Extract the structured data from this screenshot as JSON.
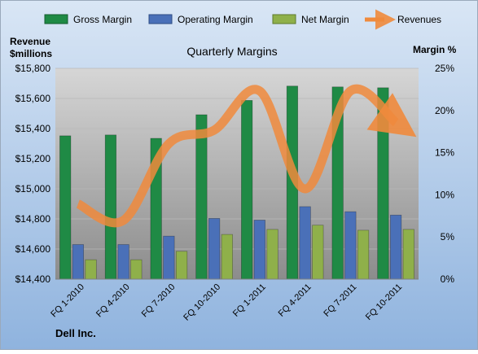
{
  "chart_data": {
    "type": "bar",
    "title": "Quarterly Margins",
    "source": "Dell Inc.",
    "left_axis_label_line1": "Revenue",
    "left_axis_label_line2": "$millions",
    "right_axis_label": "Margin %",
    "categories": [
      "FQ 1-2010",
      "FQ 4-2010",
      "FQ 7-2010",
      "FQ 10-2010",
      "FQ 1-2011",
      "FQ 4-2011",
      "FQ 7-2011",
      "FQ 10-2011"
    ],
    "left_ticks": [
      "$14,400",
      "$14,600",
      "$14,800",
      "$15,000",
      "$15,200",
      "$15,400",
      "$15,600",
      "$15,800"
    ],
    "right_ticks": [
      "0%",
      "5%",
      "10%",
      "15%",
      "20%",
      "25%"
    ],
    "ylim_left": [
      14400,
      15800
    ],
    "ylim_right": [
      0,
      25
    ],
    "legend_position": "top",
    "grid": true,
    "series": [
      {
        "name": "Gross Margin",
        "axis": "right",
        "color": "#1f8a45",
        "values": [
          17.0,
          17.1,
          16.7,
          19.5,
          21.2,
          22.9,
          22.8,
          22.7
        ]
      },
      {
        "name": "Operating Margin",
        "axis": "right",
        "color": "#4a70b8",
        "values": [
          4.1,
          4.1,
          5.1,
          7.2,
          7.0,
          8.6,
          8.0,
          7.6
        ]
      },
      {
        "name": "Net Margin",
        "axis": "right",
        "color": "#8fb04a",
        "values": [
          2.3,
          2.3,
          3.3,
          5.3,
          5.9,
          6.4,
          5.8,
          5.9
        ]
      },
      {
        "name": "Revenues",
        "axis": "left",
        "type": "line",
        "color": "#f08a3c",
        "values": [
          14900,
          14790,
          15300,
          15390,
          15650,
          15000,
          15650,
          15440
        ]
      }
    ],
    "colors": {
      "bg_top": "#d9e6f5",
      "bg_bottom": "#8fb3de",
      "plot_top": "#d6d6d6",
      "plot_bottom": "#8c8c8c",
      "grid": "#b8b8b8",
      "text": "#000000"
    }
  }
}
